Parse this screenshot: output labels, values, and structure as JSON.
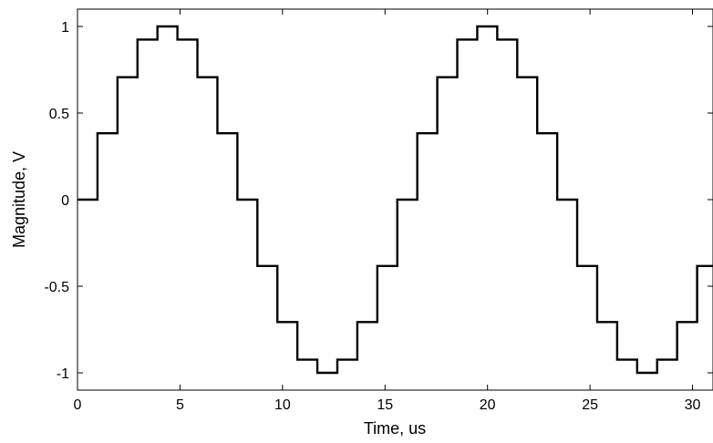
{
  "chart_data": {
    "type": "line",
    "title": "",
    "xlabel": "Time, us",
    "ylabel": "Magnitude, V",
    "xlim": [
      0,
      31
    ],
    "ylim": [
      -1.1,
      1.1
    ],
    "xticks": [
      0,
      5,
      10,
      15,
      20,
      25,
      30
    ],
    "xtick_labels": [
      "0",
      "5",
      "10",
      "15",
      "20",
      "25",
      "30"
    ],
    "yticks": [
      1,
      0.5,
      0,
      -0.5,
      -1
    ],
    "ytick_labels": [
      "1",
      "0.5",
      "0",
      "-0.5",
      "-1"
    ],
    "grid": false,
    "line_style": "step",
    "line_color": "#000000",
    "series": [
      {
        "x": [
          0,
          0.975,
          1.95,
          2.925,
          3.9,
          4.875,
          5.85,
          6.825,
          7.8,
          8.775,
          9.75,
          10.725,
          11.7,
          12.675,
          13.65,
          14.625,
          15.6,
          16.575,
          17.55,
          18.525,
          19.5,
          20.475,
          21.45,
          22.425,
          23.4,
          24.375,
          25.35,
          26.325,
          27.3,
          28.275,
          29.25,
          30.225,
          31
        ],
        "values": [
          0,
          0.383,
          0.707,
          0.924,
          1,
          0.924,
          0.707,
          0.383,
          0,
          -0.383,
          -0.707,
          -0.924,
          -1,
          -0.924,
          -0.707,
          -0.383,
          0,
          0.383,
          0.707,
          0.924,
          1,
          0.924,
          0.707,
          0.383,
          0,
          -0.383,
          -0.707,
          -0.924,
          -1,
          -0.924,
          -0.707,
          -0.383,
          -0.383
        ]
      }
    ]
  }
}
